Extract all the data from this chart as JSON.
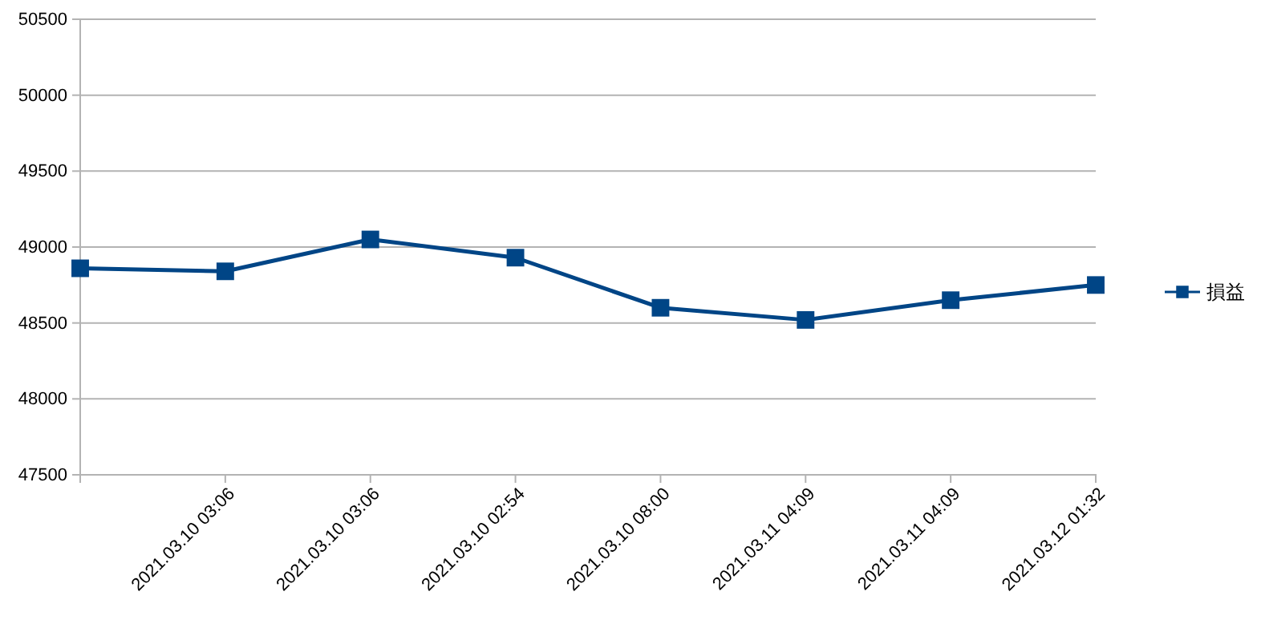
{
  "chart_data": {
    "type": "line",
    "categories": [
      null,
      "2021.03.10 03:06",
      "2021.03.10 03:06",
      "2021.03.10 02:54",
      "2021.03.10 08:00",
      "2021.03.11 04:09",
      "2021.03.11 04:09",
      "2021.03.12 01:32"
    ],
    "series": [
      {
        "name": "損益",
        "color": "#004586",
        "values": [
          48860,
          48840,
          49050,
          48930,
          48600,
          48520,
          48650,
          48750
        ]
      }
    ],
    "ylim": [
      47500,
      50500
    ],
    "yticks": [
      47500,
      48000,
      48500,
      49000,
      49500,
      50000,
      50500
    ],
    "grid": "y",
    "legend": "right",
    "marker": "square",
    "line_style": "solid"
  }
}
